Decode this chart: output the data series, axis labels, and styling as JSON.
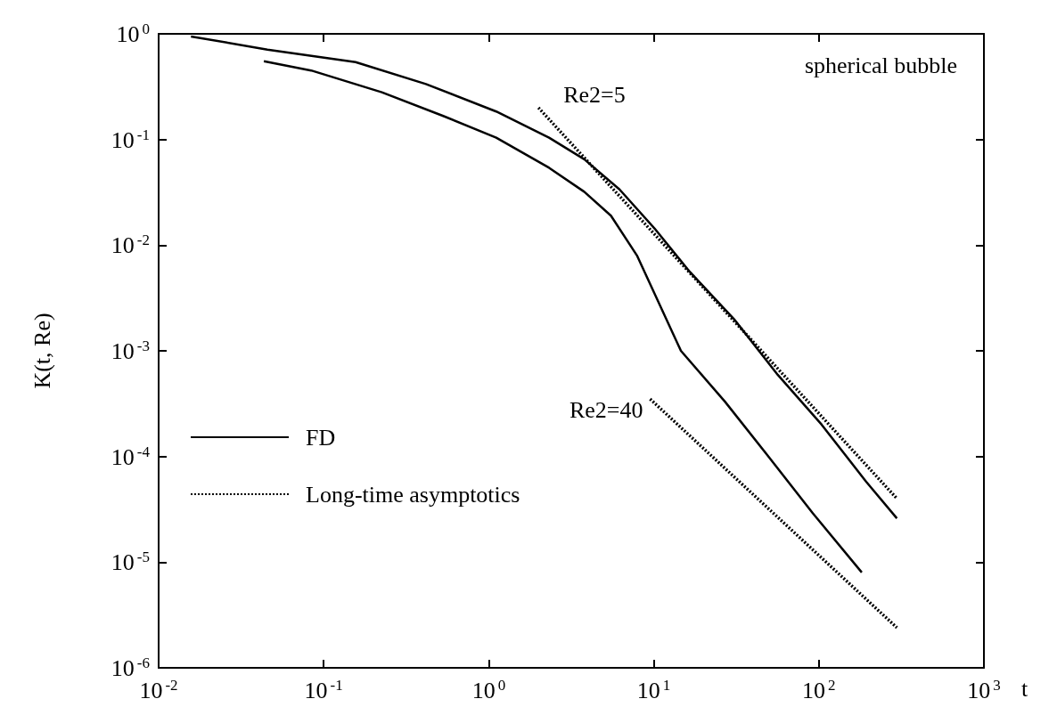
{
  "chart_data": {
    "type": "line",
    "xlabel": "t",
    "ylabel": "K(t, Re)",
    "log": "xy",
    "xlim": [
      0.01,
      1000
    ],
    "ylim": [
      1e-06,
      1
    ],
    "xticks": [
      {
        "value": 0.01,
        "label": "10$^{-2}$"
      },
      {
        "value": 0.1,
        "label": "10$^{-1}$"
      },
      {
        "value": 1,
        "label": "10$^{0}$"
      },
      {
        "value": 10,
        "label": "10$^{1}$"
      },
      {
        "value": 100,
        "label": "10$^{2}$"
      },
      {
        "value": 1000,
        "label": "10$^{3}$"
      }
    ],
    "yticks": [
      {
        "value": 1e-06,
        "label": "10$^{-6}$"
      },
      {
        "value": 1e-05,
        "label": "10$^{-5}$"
      },
      {
        "value": 0.0001,
        "label": "10$^{-4}$"
      },
      {
        "value": 0.001,
        "label": "10$^{-3}$"
      },
      {
        "value": 0.01,
        "label": "10$^{-2}$"
      },
      {
        "value": 0.1,
        "label": "10$^{-1}$"
      },
      {
        "value": 1,
        "label": "10$^{0}$"
      }
    ],
    "grid": false,
    "legend": "left",
    "marker": "none",
    "series": [
      {
        "name": "FD",
        "color": "#000000",
        "line_style": "solid",
        "x": [
          0.0157,
          0.0456,
          0.156,
          0.416,
          1.11,
          2.32,
          3.79,
          6.2,
          10.1,
          16.5,
          30.6,
          56.5,
          104,
          193,
          297
        ],
        "values": [
          0.945,
          0.71,
          0.54,
          0.335,
          0.184,
          0.104,
          0.065,
          0.0337,
          0.0144,
          0.0056,
          0.002,
          0.00059,
          0.0002,
          5.8e-05,
          2.6e-05
        ]
      },
      {
        "color": "#000000",
        "line_style": "solid",
        "x": [
          0.0434,
          0.084,
          0.225,
          0.53,
          1.11,
          2.32,
          3.79,
          5.5,
          7.9,
          14.6,
          27,
          50,
          92,
          182
        ],
        "values": [
          0.55,
          0.45,
          0.28,
          0.167,
          0.104,
          0.054,
          0.032,
          0.019,
          0.008,
          0.001,
          0.00033,
          9.8e-05,
          2.9e-05,
          8e-06
        ]
      },
      {
        "name": "Long-time asymptotics",
        "color": "#000000",
        "line_style": "dotted",
        "x": [
          2,
          297
        ],
        "values": [
          0.2,
          4e-05
        ]
      },
      {
        "color": "#000000",
        "line_style": "dotted",
        "x": [
          9.5,
          297
        ],
        "values": [
          0.00035,
          2.4e-06
        ]
      }
    ],
    "annotations": [
      "spherical bubble",
      {
        "text": "Re2=5",
        "x": 2,
        "y": 0.2
      },
      {
        "text": "Re2=40",
        "x": 9.5,
        "y": 0.00035
      }
    ]
  }
}
